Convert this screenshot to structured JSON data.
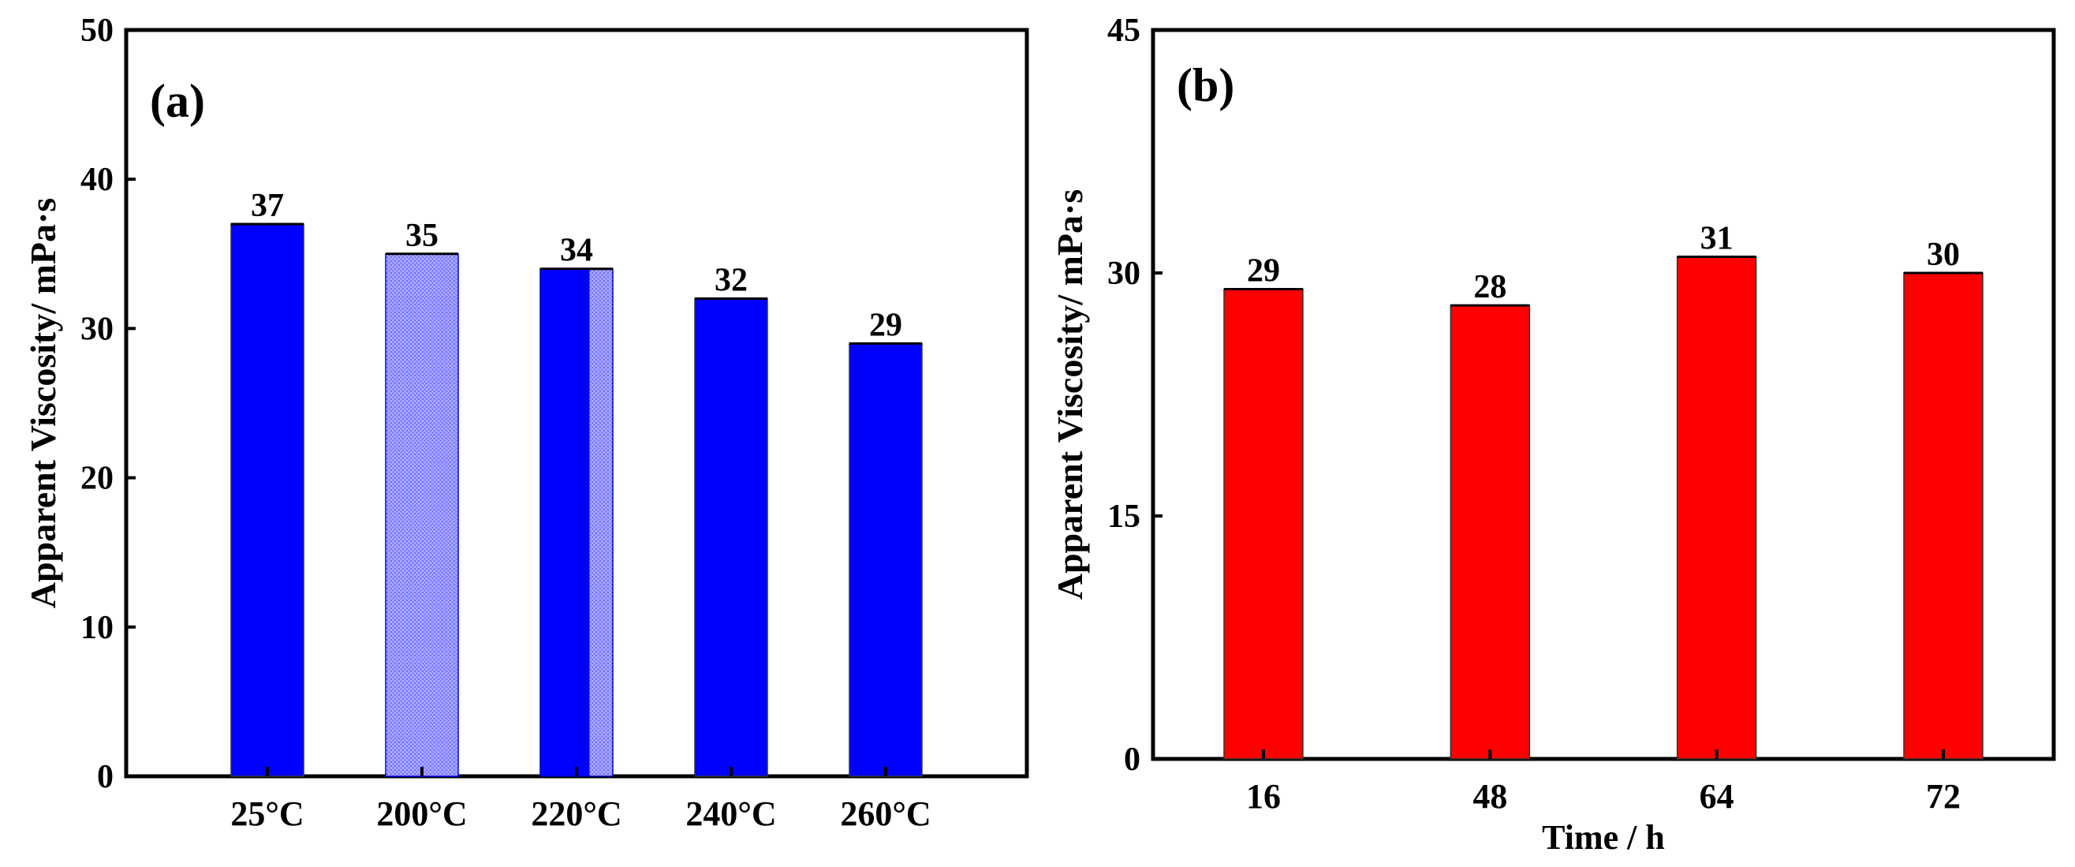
{
  "chart_data": [
    {
      "type": "bar",
      "panel_label": "(a)",
      "categories": [
        "25°C",
        "200°C",
        "220°C",
        "240°C",
        "260°C"
      ],
      "values": [
        37,
        35,
        34,
        32,
        29
      ],
      "data_labels": [
        "37",
        "35",
        "34",
        "32",
        "29"
      ],
      "ylabel": "Apparent Viscosity/ mPa·s",
      "xlabel": "",
      "ylim": [
        0,
        50
      ],
      "yticks": [
        "0",
        "10",
        "20",
        "30",
        "40",
        "50"
      ],
      "bar_styles": [
        "solid",
        "hatched",
        "half-hatched",
        "solid",
        "solid"
      ],
      "color": "#0000ff",
      "grid": false
    },
    {
      "type": "bar",
      "panel_label": "(b)",
      "categories": [
        "16",
        "48",
        "64",
        "72"
      ],
      "values": [
        29,
        28,
        31,
        30
      ],
      "data_labels": [
        "29",
        "28",
        "31",
        "30"
      ],
      "ylabel": "Apparent Viscosity/ mPa·s",
      "xlabel": "Time / h",
      "ylim": [
        0,
        45
      ],
      "yticks": [
        "0",
        "15",
        "30",
        "45"
      ],
      "color": "#ff0000",
      "grid": false
    }
  ]
}
